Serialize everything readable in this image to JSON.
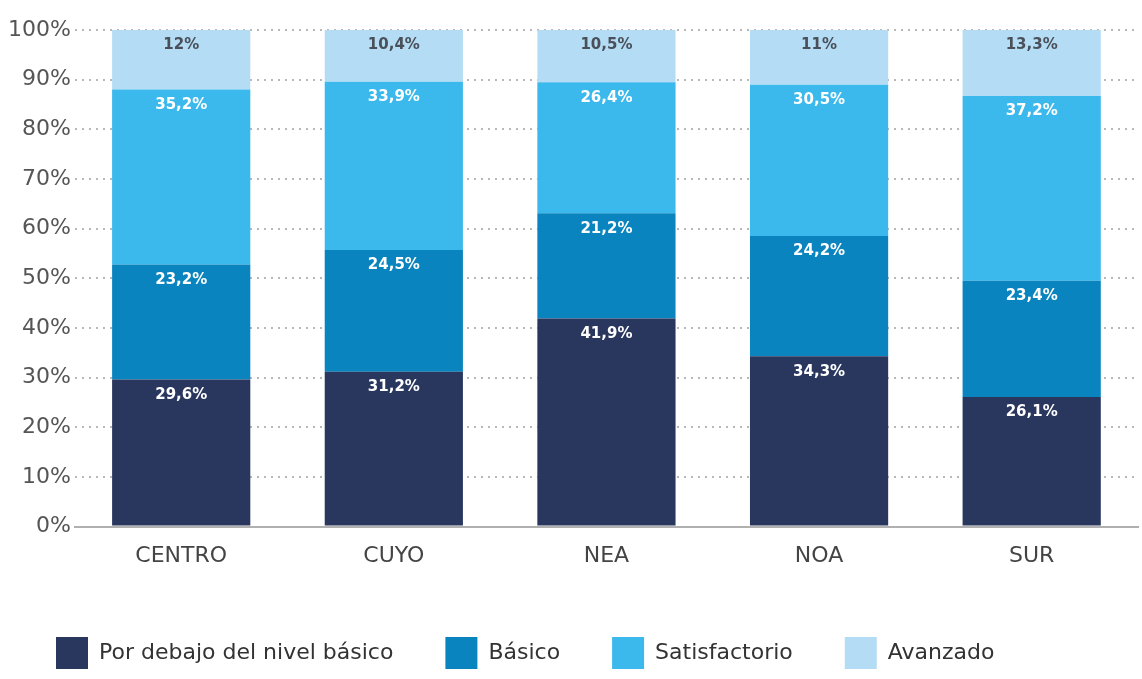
{
  "chart_data": {
    "type": "bar",
    "stacked": true,
    "categories": [
      "CENTRO",
      "CUYO",
      "NEA",
      "NOA",
      "SUR"
    ],
    "series": [
      {
        "name": "Por debajo del nivel básico",
        "color": "#29375f",
        "values": [
          29.6,
          31.2,
          41.9,
          34.3,
          26.1
        ],
        "value_labels": [
          "29,6%",
          "31,2%",
          "41,9%",
          "34,3%",
          "26,1%"
        ]
      },
      {
        "name": "Básico",
        "color": "#0a84bf",
        "values": [
          23.2,
          24.5,
          21.2,
          24.2,
          23.4
        ],
        "value_labels": [
          "23,2%",
          "24,5%",
          "21,2%",
          "24,2%",
          "23,4%"
        ]
      },
      {
        "name": "Satisfactorio",
        "color": "#3cb9ec",
        "values": [
          35.2,
          33.9,
          26.4,
          30.5,
          37.2
        ],
        "value_labels": [
          "35,2%",
          "33,9%",
          "26,4%",
          "30,5%",
          "37,2%"
        ]
      },
      {
        "name": "Avanzado",
        "color": "#b4ddf5",
        "values": [
          12,
          10.4,
          10.5,
          11,
          13.3
        ],
        "value_labels": [
          "12%",
          "10,4%",
          "10,5%",
          "11%",
          "13,3%"
        ]
      }
    ],
    "ylim": [
      0,
      100
    ],
    "yticks": [
      {
        "value": 0,
        "label": "0%"
      },
      {
        "value": 10,
        "label": "10%"
      },
      {
        "value": 20,
        "label": "20%"
      },
      {
        "value": 30,
        "label": "30%"
      },
      {
        "value": 40,
        "label": "40%"
      },
      {
        "value": 50,
        "label": "50%"
      },
      {
        "value": 60,
        "label": "60%"
      },
      {
        "value": 70,
        "label": "70%"
      },
      {
        "value": 80,
        "label": "80%"
      },
      {
        "value": 90,
        "label": "90%"
      },
      {
        "value": 100,
        "label": "100%"
      }
    ],
    "grid": "y",
    "legend": "bottom"
  }
}
